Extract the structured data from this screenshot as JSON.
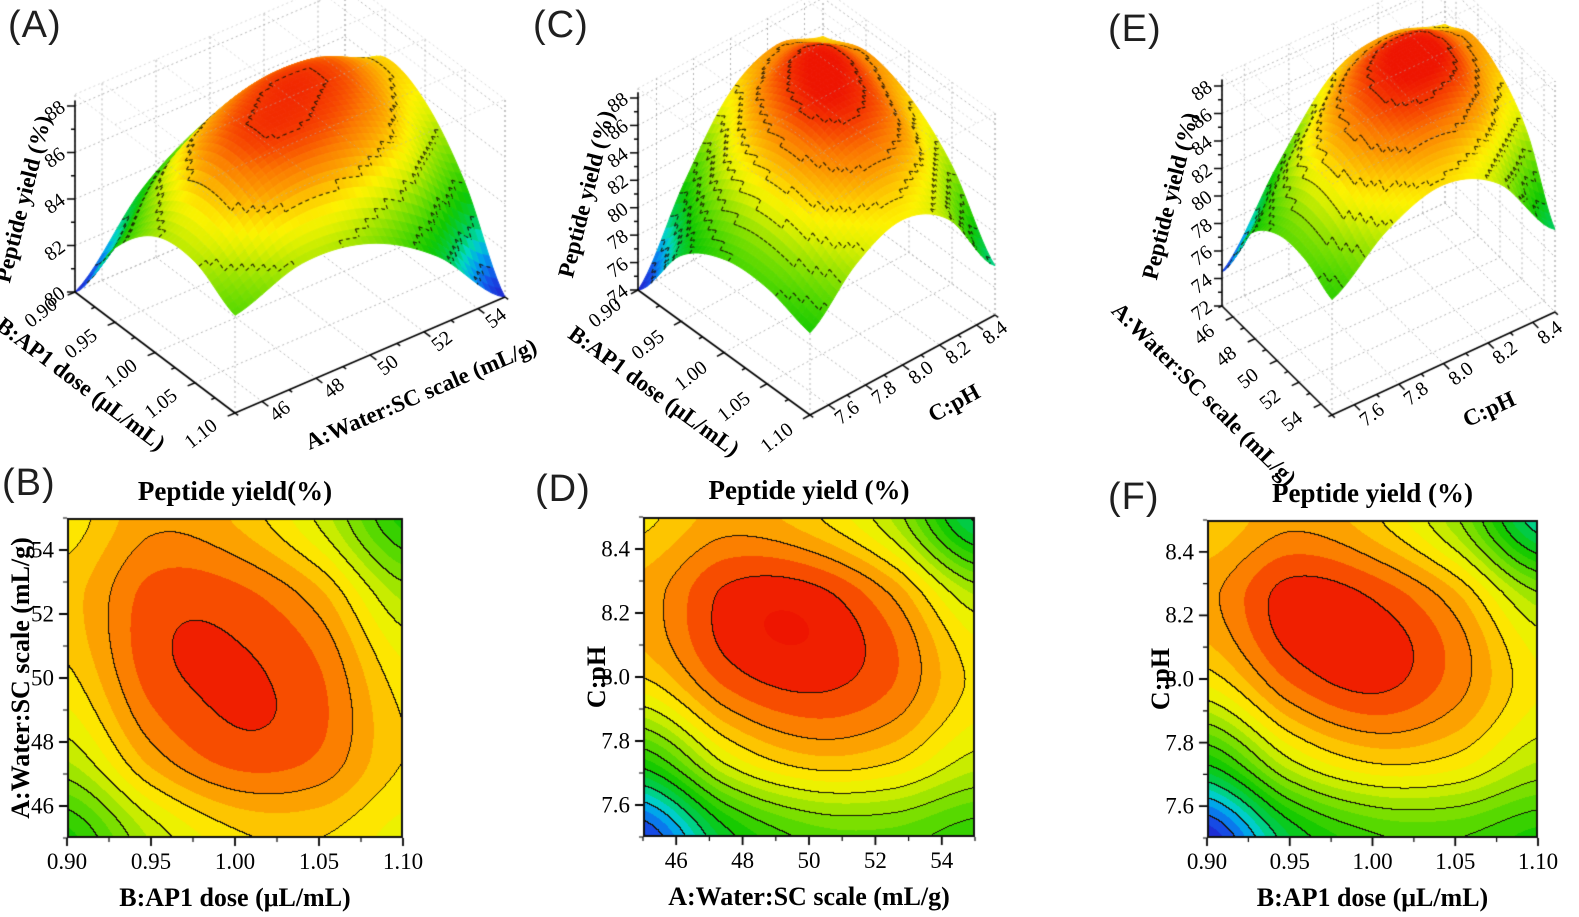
{
  "chart_data": {
    "type": "surface-contour-figure",
    "description": "Response surface methodology plots of peptide yield (%) versus extraction factors",
    "response_label": "Peptide yield (%)",
    "colormap": {
      "domain": [
        74,
        88.5
      ],
      "stops": [
        [
          0.0,
          "#2020cc"
        ],
        [
          0.08,
          "#1550e8"
        ],
        [
          0.16,
          "#00a0f0"
        ],
        [
          0.23,
          "#00d8c0"
        ],
        [
          0.3,
          "#00cc50"
        ],
        [
          0.4,
          "#10c800"
        ],
        [
          0.5,
          "#52d800"
        ],
        [
          0.6,
          "#9ce400"
        ],
        [
          0.68,
          "#e0f000"
        ],
        [
          0.73,
          "#fdf200"
        ],
        [
          0.78,
          "#fdd200"
        ],
        [
          0.84,
          "#fca400"
        ],
        [
          0.9,
          "#fb7a00"
        ],
        [
          0.95,
          "#f64400"
        ],
        [
          1.0,
          "#ee1500"
        ]
      ]
    },
    "contour": {
      "band_step": 0.7,
      "line_step": 1.4,
      "ring_step": 1.4,
      "level_base": 74
    },
    "surface_grids": {
      "B_vs_A": {
        "x_values": [
          0.9,
          0.95,
          1.0,
          1.05,
          1.1
        ],
        "y_values": [
          45,
          47.5,
          50,
          52.5,
          55
        ],
        "z": [
          [
            80.0,
            83.2,
            85.0,
            85.2,
            84.2
          ],
          [
            83.2,
            86.2,
            87.6,
            87.2,
            85.2
          ],
          [
            85.0,
            87.6,
            88.1,
            87.4,
            84.8
          ],
          [
            85.6,
            87.6,
            87.6,
            86.2,
            83.0
          ],
          [
            84.8,
            86.4,
            85.8,
            83.6,
            80.0
          ]
        ]
      },
      "B_vs_pH": {
        "x_values": [
          0.9,
          0.95,
          1.0,
          1.05,
          1.1
        ],
        "y_values": [
          7.5,
          7.75,
          8.0,
          8.25,
          8.5
        ],
        "z": [
          [
            74.0,
            78.8,
            80.8,
            81.0,
            80.0
          ],
          [
            80.0,
            83.8,
            85.4,
            85.0,
            83.2
          ],
          [
            84.8,
            87.4,
            88.3,
            87.0,
            84.6
          ],
          [
            86.4,
            88.4,
            88.0,
            86.2,
            82.8
          ],
          [
            85.2,
            86.4,
            85.4,
            82.6,
            77.6
          ]
        ]
      },
      "A_vs_pH": {
        "x_values": [
          45,
          47.5,
          50,
          52.5,
          55
        ],
        "y_values": [
          7.5,
          7.75,
          8.0,
          8.25,
          8.5
        ],
        "z": [
          [
            74.5,
            79.2,
            81.2,
            81.4,
            80.4
          ],
          [
            80.4,
            84.2,
            85.8,
            85.4,
            83.6
          ],
          [
            85.2,
            87.6,
            88.3,
            87.4,
            85.0
          ],
          [
            86.2,
            88.2,
            88.4,
            86.6,
            83.2
          ],
          [
            85.0,
            86.2,
            85.4,
            83.0,
            78.0
          ]
        ]
      }
    },
    "panels": [
      {
        "id": "A",
        "label": "(A)",
        "type": "surface3d",
        "grid": "B_vs_A",
        "x_axis": {
          "label": "B:AP1 dose (μL/mL)",
          "min": 0.9,
          "max": 1.1,
          "ticks": [
            "0.90",
            "0.95",
            "1.00",
            "1.05",
            "1.10"
          ]
        },
        "y_axis": {
          "label": "A:Water:SC scale (mL/g)",
          "min": 45,
          "max": 55,
          "ticks": [
            "46",
            "48",
            "50",
            "52",
            "54"
          ]
        },
        "z_axis": {
          "label": "Peptide yield (%)",
          "min": 80,
          "max": 88,
          "ticks": [
            "80",
            "82",
            "84",
            "86",
            "88"
          ]
        },
        "color_domain": [
          80,
          88.3
        ]
      },
      {
        "id": "C",
        "label": "(C)",
        "type": "surface3d",
        "grid": "B_vs_pH",
        "x_axis": {
          "label": "B:AP1 dose (μL/mL)",
          "min": 0.9,
          "max": 1.1,
          "ticks": [
            "0.90",
            "0.95",
            "1.00",
            "1.05",
            "1.10"
          ]
        },
        "y_axis": {
          "label": "C:pH",
          "min": 7.5,
          "max": 8.5,
          "ticks": [
            "7.6",
            "7.8",
            "8.0",
            "8.2",
            "8.4"
          ]
        },
        "z_axis": {
          "label": "Peptide yield (%)",
          "min": 74,
          "max": 88,
          "ticks": [
            "74",
            "76",
            "78",
            "80",
            "82",
            "84",
            "86",
            "88"
          ]
        },
        "color_domain": [
          74,
          88.5
        ]
      },
      {
        "id": "E",
        "label": "(E)",
        "type": "surface3d",
        "grid": "A_vs_pH",
        "x_axis": {
          "label": "A:Water:SC scale (mL/g)",
          "min": 45,
          "max": 55,
          "ticks": [
            "46",
            "48",
            "50",
            "52",
            "54"
          ]
        },
        "y_axis": {
          "label": "C:pH",
          "min": 7.5,
          "max": 8.5,
          "ticks": [
            "7.6",
            "7.8",
            "8.0",
            "8.2",
            "8.4"
          ]
        },
        "z_axis": {
          "label": "Peptide yield (%)",
          "min": 72,
          "max": 88,
          "ticks": [
            "72",
            "74",
            "76",
            "78",
            "80",
            "82",
            "84",
            "86",
            "88"
          ]
        },
        "color_domain": [
          74,
          88.5
        ]
      },
      {
        "id": "B",
        "label": "(B)",
        "type": "contour",
        "grid": "B_vs_A",
        "title": "Peptide yield(%)",
        "x_axis": {
          "label": "B:AP1 dose (μL/mL)",
          "min": 0.9,
          "max": 1.1,
          "ticks": [
            "0.90",
            "0.95",
            "1.00",
            "1.05",
            "1.10"
          ]
        },
        "y_axis": {
          "label": "A:Water:SC scale (mL/g)",
          "min": 45,
          "max": 55,
          "ticks": [
            "46",
            "48",
            "50",
            "52",
            "54"
          ]
        }
      },
      {
        "id": "D",
        "label": "(D)",
        "type": "contour",
        "grid": "A_vs_pH",
        "title": "Peptide yield (%)",
        "x_axis": {
          "label": "A:Water:SC scale (mL/g)",
          "min": 45,
          "max": 55,
          "ticks": [
            "46",
            "48",
            "50",
            "52",
            "54"
          ]
        },
        "y_axis": {
          "label": "C:pH",
          "min": 7.5,
          "max": 8.5,
          "ticks": [
            "7.6",
            "7.8",
            "8.0",
            "8.2",
            "8.4"
          ]
        }
      },
      {
        "id": "F",
        "label": "(F)",
        "type": "contour",
        "grid": "B_vs_pH",
        "title": "Peptide yield (%)",
        "x_axis": {
          "label": "B:AP1 dose (μL/mL)",
          "min": 0.9,
          "max": 1.1,
          "ticks": [
            "0.90",
            "0.95",
            "1.00",
            "1.05",
            "1.10"
          ]
        },
        "y_axis": {
          "label": "C:pH",
          "min": 7.5,
          "max": 8.5,
          "ticks": [
            "7.6",
            "7.8",
            "8.0",
            "8.2",
            "8.4"
          ]
        }
      }
    ]
  }
}
